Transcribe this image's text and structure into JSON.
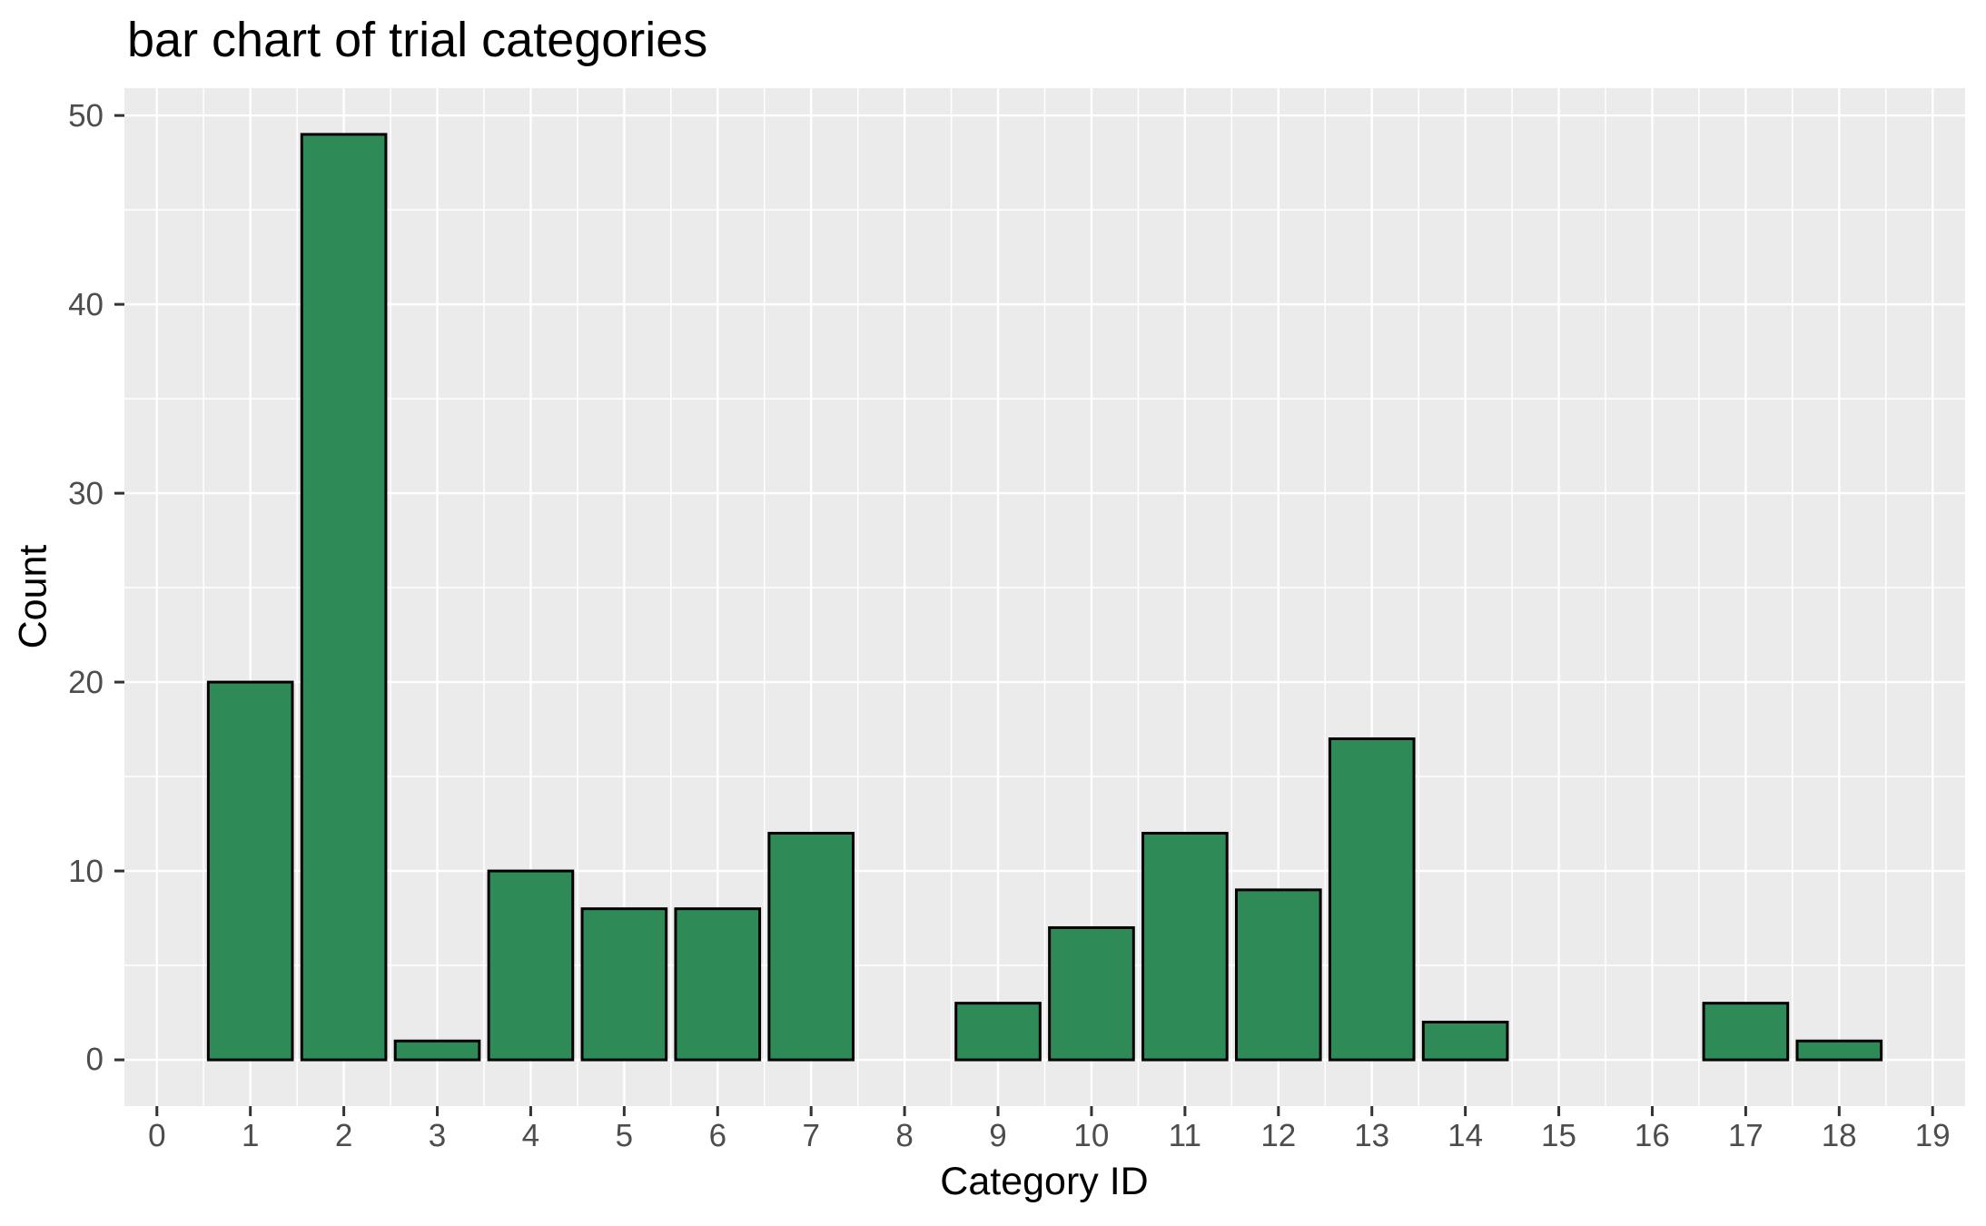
{
  "chart_data": {
    "type": "bar",
    "title": "bar chart of trial categories",
    "xlabel": "Category ID",
    "ylabel": "Count",
    "categories": [
      0,
      1,
      2,
      3,
      4,
      5,
      6,
      7,
      8,
      9,
      10,
      11,
      12,
      13,
      14,
      15,
      16,
      17,
      18,
      19
    ],
    "values": [
      0,
      20,
      49,
      1,
      10,
      8,
      8,
      12,
      0,
      3,
      7,
      12,
      9,
      17,
      2,
      0,
      0,
      3,
      1,
      0
    ],
    "x_ticks": [
      "0",
      "1",
      "2",
      "3",
      "4",
      "5",
      "6",
      "7",
      "8",
      "9",
      "10",
      "11",
      "12",
      "13",
      "14",
      "15",
      "16",
      "17",
      "18",
      "19"
    ],
    "y_ticks": [
      "0",
      "10",
      "20",
      "30",
      "40",
      "50"
    ],
    "y_tick_values": [
      0,
      10,
      20,
      30,
      40,
      50
    ],
    "y_minor_values": [
      5,
      15,
      25,
      35,
      45
    ],
    "xlim": [
      -0.3475,
      19.3475
    ],
    "ylim": [
      -2.45,
      51.45
    ],
    "bar_width": 0.9,
    "grid": true,
    "legend": false,
    "colors": {
      "bar_fill": "#2e8b57",
      "bar_stroke": "#000000",
      "panel_bg": "#ebebeb",
      "grid": "#ffffff",
      "tick_text": "#4d4d4d",
      "tick_mark": "#333333",
      "title_text": "#000000"
    }
  }
}
